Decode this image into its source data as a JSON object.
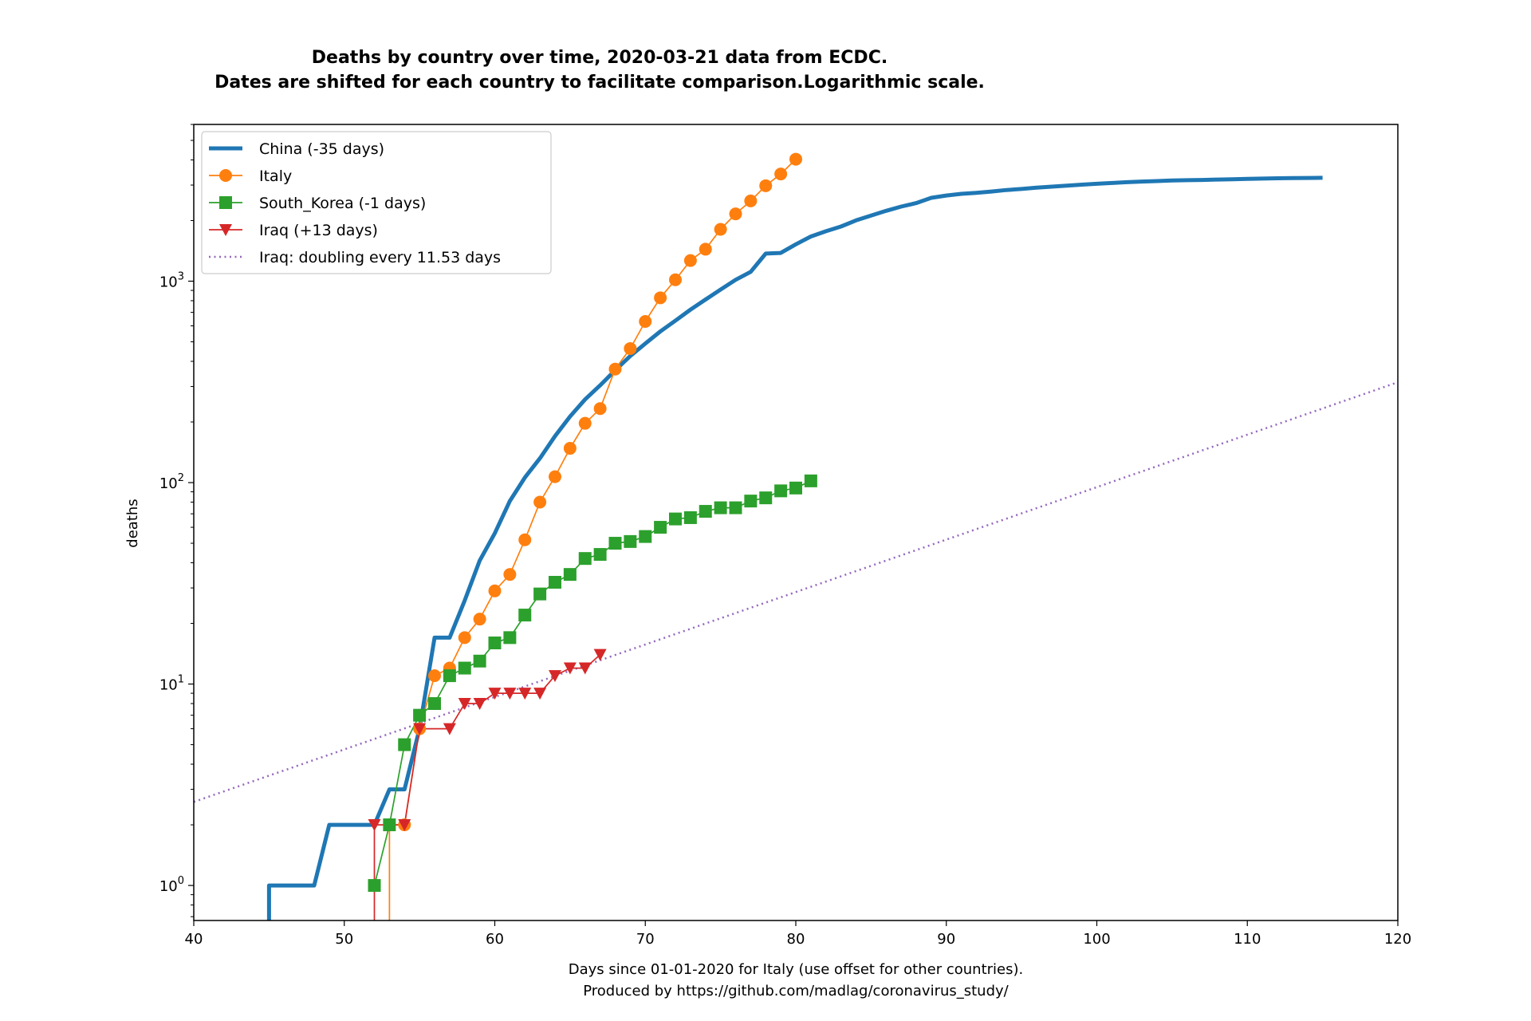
{
  "chart_data": {
    "type": "line",
    "title_line1": "Deaths by country over time, 2020-03-21 data from ECDC.",
    "title_line2": "Dates are shifted for each country to facilitate comparison.Logarithmic scale.",
    "xlabel_line1": "Days since 01-01-2020 for Italy (use offset for other countries).",
    "xlabel_line2": "Produced by https://github.com/madlag/coronavirus_study/",
    "ylabel": "deaths",
    "xlim": [
      40,
      120
    ],
    "ylim": [
      0.67,
      6000
    ],
    "yscale": "log",
    "grid": false,
    "legend_position": "top-left",
    "x_ticks": [
      40,
      50,
      60,
      70,
      80,
      90,
      100,
      110,
      120
    ],
    "x_tick_labels": [
      "40",
      "50",
      "60",
      "70",
      "80",
      "90",
      "100",
      "110",
      "120"
    ],
    "y_ticks": [
      1,
      10,
      100,
      1000
    ],
    "y_tick_labels": [
      {
        "base": "10",
        "exp": "0"
      },
      {
        "base": "10",
        "exp": "1"
      },
      {
        "base": "10",
        "exp": "2"
      },
      {
        "base": "10",
        "exp": "3"
      }
    ],
    "series": [
      {
        "name": "China (-35 days)",
        "color": "#1f77b4",
        "marker": "none",
        "style": "solid-thick",
        "x": [
          45,
          45,
          48,
          49,
          52,
          53,
          54,
          55,
          56,
          57,
          58,
          59,
          60,
          61,
          62,
          63,
          64,
          65,
          66,
          67,
          68,
          69,
          70,
          71,
          72,
          73,
          74,
          75,
          76,
          77,
          78,
          79,
          80,
          81,
          82,
          83,
          84,
          85,
          86,
          87,
          88,
          89,
          90,
          91,
          92,
          93,
          94,
          95,
          96,
          97,
          98,
          99,
          100,
          101,
          102,
          103,
          104,
          105,
          106,
          107,
          108,
          109,
          110,
          111,
          112,
          113,
          114,
          115
        ],
        "y": [
          0.5,
          1,
          1,
          2,
          2,
          3,
          3,
          6,
          17,
          17,
          26,
          41,
          56,
          81,
          106,
          132,
          170,
          213,
          259,
          304,
          361,
          425,
          490,
          563,
          637,
          722,
          811,
          908,
          1016,
          1113,
          1371,
          1381,
          1524,
          1666,
          1770,
          1868,
          2004,
          2118,
          2236,
          2345,
          2442,
          2592,
          2663,
          2715,
          2744,
          2788,
          2835,
          2870,
          2912,
          2946,
          2981,
          3013,
          3045,
          3073,
          3100,
          3123,
          3140,
          3162,
          3173,
          3180,
          3194,
          3204,
          3218,
          3231,
          3242,
          3249,
          3253,
          3261
        ]
      },
      {
        "name": "Italy",
        "color": "#ff7f0e",
        "marker": "circle",
        "style": "solid",
        "x": [
          53,
          53,
          54,
          55,
          56,
          57,
          58,
          59,
          60,
          61,
          62,
          63,
          64,
          65,
          66,
          67,
          68,
          69,
          70,
          71,
          72,
          73,
          74,
          75,
          76,
          77,
          78,
          79,
          80
        ],
        "y": [
          0.3,
          2,
          2,
          6,
          11,
          12,
          17,
          21,
          29,
          35,
          52,
          80,
          107,
          148,
          197,
          233,
          366,
          463,
          631,
          827,
          1016,
          1266,
          1441,
          1809,
          2158,
          2503,
          2978,
          3405,
          4032
        ]
      },
      {
        "name": "South_Korea (-1 days)",
        "color": "#2ca02c",
        "marker": "square",
        "style": "solid",
        "x": [
          52,
          53,
          54,
          55,
          56,
          57,
          58,
          59,
          60,
          61,
          62,
          63,
          64,
          65,
          66,
          67,
          68,
          69,
          70,
          71,
          72,
          73,
          74,
          75,
          76,
          77,
          78,
          79,
          80,
          81
        ],
        "y": [
          1,
          2,
          5,
          7,
          8,
          11,
          12,
          13,
          16,
          17,
          22,
          28,
          32,
          35,
          42,
          44,
          50,
          51,
          54,
          60,
          66,
          67,
          72,
          75,
          75,
          81,
          84,
          91,
          94,
          102
        ]
      },
      {
        "name": "Iraq (+13 days)",
        "color": "#d62728",
        "marker": "triangle-down",
        "style": "solid",
        "x": [
          52,
          52,
          54,
          55,
          57,
          58,
          59,
          60,
          61,
          62,
          63,
          64,
          65,
          66,
          67
        ],
        "y": [
          0.3,
          2,
          2,
          6,
          6,
          8,
          8,
          9,
          9,
          9,
          9,
          11,
          12,
          12,
          14
        ]
      },
      {
        "name": "Iraq: doubling every 11.53 days",
        "color": "#9467bd",
        "marker": "none",
        "style": "dotted",
        "x": [
          40,
          120
        ],
        "y": [
          2.6,
          315
        ]
      }
    ]
  }
}
